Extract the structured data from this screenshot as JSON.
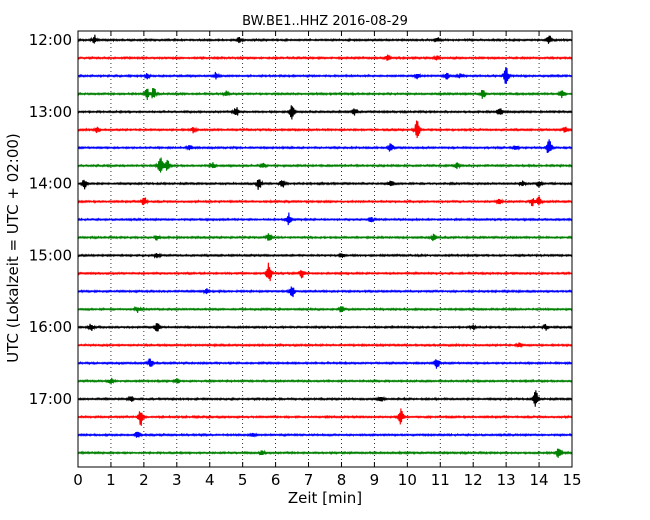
{
  "chart_data": {
    "type": "line",
    "title": "BW.BE1..HHZ 2016-08-29",
    "xlabel": "Zeit  [min]",
    "ylabel": "UTC (Lokalzeit = UTC + 02:00)",
    "xlim": [
      0,
      15
    ],
    "x_ticks": [
      "0",
      "1",
      "2",
      "3",
      "4",
      "5",
      "6",
      "7",
      "8",
      "9",
      "10",
      "11",
      "12",
      "13",
      "14",
      "15"
    ],
    "y_tick_labels": [
      {
        "row": 0,
        "label": "12:00"
      },
      {
        "row": 4,
        "label": "13:00"
      },
      {
        "row": 8,
        "label": "14:00"
      },
      {
        "row": 12,
        "label": "15:00"
      },
      {
        "row": 16,
        "label": "16:00"
      },
      {
        "row": 20,
        "label": "17:00"
      }
    ],
    "grid": "vertical-dotted",
    "color_cycle": [
      "#000000",
      "#ff0000",
      "#0000ff",
      "#008000"
    ],
    "trace_interval_min": 15,
    "series": [
      {
        "start": "12:00",
        "color": "#000000",
        "events": [
          {
            "t": 0.5,
            "a": 0.9
          },
          {
            "t": 4.9,
            "a": 0.5
          },
          {
            "t": 10.9,
            "a": 0.5
          },
          {
            "t": 14.3,
            "a": 1.0
          }
        ]
      },
      {
        "start": "12:15",
        "color": "#ff0000",
        "events": [
          {
            "t": 9.4,
            "a": 0.6
          },
          {
            "t": 10.9,
            "a": 0.6
          }
        ]
      },
      {
        "start": "12:30",
        "color": "#0000ff",
        "events": [
          {
            "t": 2.1,
            "a": 0.5
          },
          {
            "t": 4.2,
            "a": 0.7
          },
          {
            "t": 10.3,
            "a": 0.5
          },
          {
            "t": 11.2,
            "a": 0.6
          },
          {
            "t": 11.6,
            "a": 0.5
          },
          {
            "t": 13.0,
            "a": 1.7
          }
        ]
      },
      {
        "start": "12:45",
        "color": "#008000",
        "events": [
          {
            "t": 2.1,
            "a": 1.0
          },
          {
            "t": 2.3,
            "a": 1.2
          },
          {
            "t": 4.5,
            "a": 0.5
          },
          {
            "t": 12.3,
            "a": 1.0
          },
          {
            "t": 14.7,
            "a": 0.8
          }
        ]
      },
      {
        "start": "13:00",
        "color": "#000000",
        "events": [
          {
            "t": 4.8,
            "a": 1.0
          },
          {
            "t": 6.5,
            "a": 1.4
          },
          {
            "t": 8.4,
            "a": 0.6
          },
          {
            "t": 12.8,
            "a": 0.8
          }
        ]
      },
      {
        "start": "13:15",
        "color": "#ff0000",
        "events": [
          {
            "t": 0.6,
            "a": 0.6
          },
          {
            "t": 3.5,
            "a": 0.5
          },
          {
            "t": 10.3,
            "a": 1.8
          },
          {
            "t": 14.8,
            "a": 0.6
          }
        ]
      },
      {
        "start": "13:30",
        "color": "#0000ff",
        "events": [
          {
            "t": 3.4,
            "a": 0.5
          },
          {
            "t": 9.5,
            "a": 0.9
          },
          {
            "t": 13.3,
            "a": 0.5
          },
          {
            "t": 14.3,
            "a": 1.6
          }
        ]
      },
      {
        "start": "13:45",
        "color": "#008000",
        "events": [
          {
            "t": 2.5,
            "a": 1.6
          },
          {
            "t": 2.7,
            "a": 1.4
          },
          {
            "t": 4.1,
            "a": 0.6
          },
          {
            "t": 5.6,
            "a": 0.6
          },
          {
            "t": 11.5,
            "a": 0.5
          }
        ]
      },
      {
        "start": "14:00",
        "color": "#000000",
        "events": [
          {
            "t": 0.2,
            "a": 1.0
          },
          {
            "t": 5.5,
            "a": 1.3
          },
          {
            "t": 6.2,
            "a": 0.8
          },
          {
            "t": 9.5,
            "a": 0.6
          },
          {
            "t": 13.5,
            "a": 0.5
          },
          {
            "t": 14.0,
            "a": 0.8
          }
        ]
      },
      {
        "start": "14:15",
        "color": "#ff0000",
        "events": [
          {
            "t": 2.0,
            "a": 1.0
          },
          {
            "t": 12.8,
            "a": 0.5
          },
          {
            "t": 13.8,
            "a": 0.8
          },
          {
            "t": 14.0,
            "a": 1.0
          }
        ]
      },
      {
        "start": "14:30",
        "color": "#0000ff",
        "events": [
          {
            "t": 6.4,
            "a": 1.3
          },
          {
            "t": 8.9,
            "a": 0.5
          }
        ]
      },
      {
        "start": "14:45",
        "color": "#008000",
        "events": [
          {
            "t": 2.4,
            "a": 0.5
          },
          {
            "t": 5.8,
            "a": 0.7
          },
          {
            "t": 10.8,
            "a": 0.6
          }
        ]
      },
      {
        "start": "15:00",
        "color": "#000000",
        "events": [
          {
            "t": 2.4,
            "a": 0.4
          },
          {
            "t": 8.0,
            "a": 0.4
          }
        ]
      },
      {
        "start": "15:15",
        "color": "#ff0000",
        "events": [
          {
            "t": 5.8,
            "a": 2.2
          },
          {
            "t": 6.8,
            "a": 0.9
          }
        ]
      },
      {
        "start": "15:30",
        "color": "#0000ff",
        "events": [
          {
            "t": 3.9,
            "a": 0.6
          },
          {
            "t": 6.5,
            "a": 1.3
          }
        ]
      },
      {
        "start": "15:45",
        "color": "#008000",
        "events": [
          {
            "t": 1.8,
            "a": 0.6
          },
          {
            "t": 8.0,
            "a": 0.6
          }
        ]
      },
      {
        "start": "16:00",
        "color": "#000000",
        "events": [
          {
            "t": 0.4,
            "a": 0.8
          },
          {
            "t": 2.4,
            "a": 1.3
          },
          {
            "t": 12.0,
            "a": 0.5
          },
          {
            "t": 14.2,
            "a": 0.6
          }
        ]
      },
      {
        "start": "16:15",
        "color": "#ff0000",
        "events": [
          {
            "t": 13.4,
            "a": 0.4
          }
        ]
      },
      {
        "start": "16:30",
        "color": "#0000ff",
        "events": [
          {
            "t": 2.2,
            "a": 1.0
          },
          {
            "t": 10.9,
            "a": 1.0
          }
        ]
      },
      {
        "start": "16:45",
        "color": "#008000",
        "events": [
          {
            "t": 1.0,
            "a": 0.5
          },
          {
            "t": 3.0,
            "a": 0.5
          }
        ]
      },
      {
        "start": "17:00",
        "color": "#000000",
        "events": [
          {
            "t": 1.6,
            "a": 0.6
          },
          {
            "t": 9.2,
            "a": 0.6
          },
          {
            "t": 13.9,
            "a": 1.6
          }
        ]
      },
      {
        "start": "17:15",
        "color": "#ff0000",
        "events": [
          {
            "t": 1.9,
            "a": 1.7
          },
          {
            "t": 9.8,
            "a": 1.6
          }
        ]
      },
      {
        "start": "17:30",
        "color": "#0000ff",
        "events": [
          {
            "t": 1.8,
            "a": 0.8
          },
          {
            "t": 5.3,
            "a": 0.5
          }
        ]
      },
      {
        "start": "17:45",
        "color": "#008000",
        "events": [
          {
            "t": 5.6,
            "a": 0.5
          },
          {
            "t": 14.6,
            "a": 1.1
          }
        ]
      }
    ]
  }
}
